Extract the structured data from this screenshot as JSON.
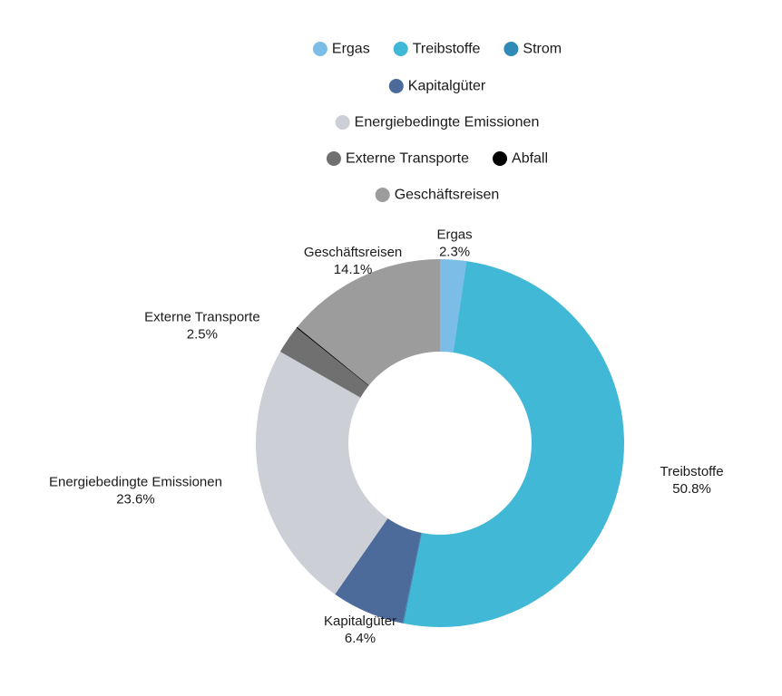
{
  "chart_data": {
    "type": "pie",
    "donut": true,
    "legend_position": "top",
    "categories": [
      "Ergas",
      "Treibstoffe",
      "Strom",
      "Kapitalgüter",
      "Energiebedingte Emissionen",
      "Externe Transporte",
      "Abfall",
      "Geschäftsreisen"
    ],
    "values": [
      2.3,
      50.8,
      0.1,
      6.4,
      23.6,
      2.5,
      0.1,
      14.1
    ],
    "colors": [
      "#7bbde6",
      "#42b8d7",
      "#2f8bb5",
      "#4d6b9a",
      "#cdcfd6",
      "#707070",
      "#000000",
      "#9c9c9c"
    ],
    "labels": [
      {
        "name": "Ergas",
        "value": "2.3%"
      },
      {
        "name": "Treibstoffe",
        "value": "50.8%"
      },
      null,
      {
        "name": "Kapitalgüter",
        "value": "6.4%"
      },
      {
        "name": "Energiebedingte Emissionen",
        "value": "23.6%"
      },
      {
        "name": "Externe Transporte",
        "value": "2.5%"
      },
      null,
      {
        "name": "Geschäftsreisen",
        "value": "14.1%"
      }
    ]
  }
}
